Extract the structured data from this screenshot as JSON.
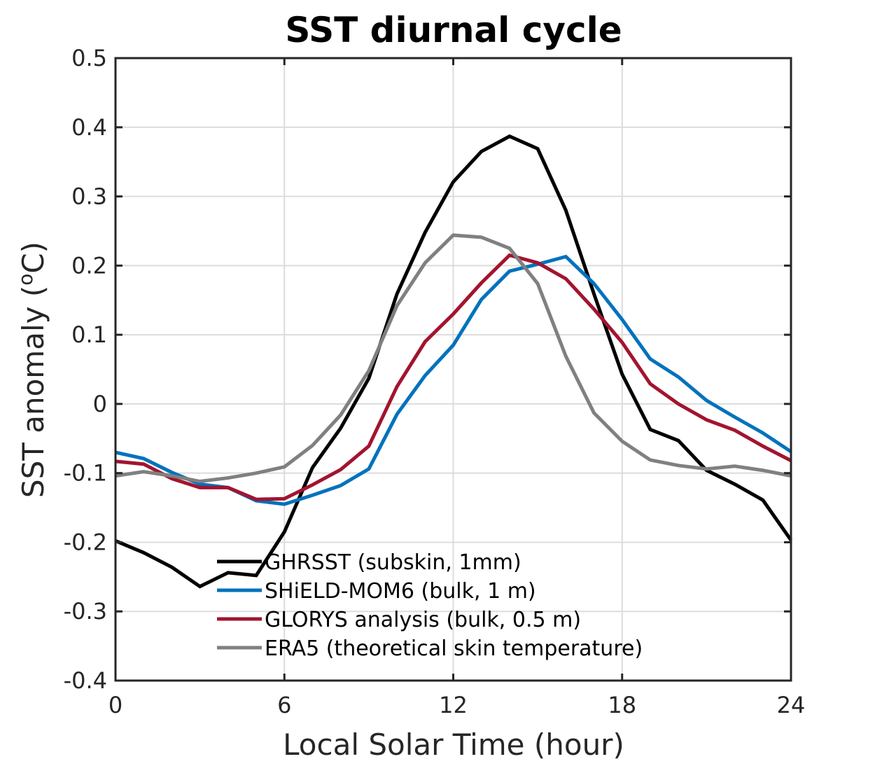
{
  "chart_data": {
    "type": "line",
    "title": "SST diurnal cycle",
    "xlabel": "Local Solar Time (hour)",
    "ylabel": "SST anomaly (",
    "ylabel_sup": "o",
    "ylabel_end": "C)",
    "xlim": [
      0,
      24
    ],
    "ylim": [
      -0.4,
      0.5
    ],
    "xticks": [
      0,
      6,
      12,
      18,
      24
    ],
    "xtick_labels": [
      "0",
      "6",
      "12",
      "18",
      "24"
    ],
    "yticks": [
      -0.4,
      -0.3,
      -0.2,
      -0.1,
      0,
      0.1,
      0.2,
      0.3,
      0.4,
      0.5
    ],
    "ytick_labels": [
      "-0.4",
      "-0.3",
      "-0.2",
      "-0.1",
      "0",
      "0.1",
      "0.2",
      "0.3",
      "0.4",
      "0.5"
    ],
    "grid": true,
    "legend_position": "bottom-center",
    "x": [
      0,
      1,
      2,
      3,
      4,
      5,
      6,
      7,
      8,
      9,
      10,
      11,
      12,
      13,
      14,
      15,
      16,
      17,
      18,
      19,
      20,
      21,
      22,
      23,
      24
    ],
    "series": [
      {
        "name": "GHRSST (subskin, 1mm)",
        "color": "#000000",
        "values": [
          -0.198,
          -0.215,
          -0.236,
          -0.264,
          -0.244,
          -0.248,
          -0.185,
          -0.092,
          -0.035,
          0.037,
          0.159,
          0.248,
          0.321,
          0.365,
          0.387,
          0.369,
          0.28,
          0.159,
          0.043,
          -0.037,
          -0.053,
          -0.096,
          -0.116,
          -0.139,
          -0.197
        ]
      },
      {
        "name": "SHiELD-MOM6 (bulk, 1 m)",
        "color": "#0072BD",
        "values": [
          -0.07,
          -0.079,
          -0.099,
          -0.116,
          -0.121,
          -0.14,
          -0.145,
          -0.132,
          -0.118,
          -0.094,
          -0.015,
          0.041,
          0.085,
          0.151,
          0.192,
          0.202,
          0.213,
          0.174,
          0.122,
          0.065,
          0.039,
          0.005,
          -0.019,
          -0.042,
          -0.069
        ]
      },
      {
        "name": "GLORYS analysis (bulk, 0.5 m)",
        "color": "#A2142F",
        "values": [
          -0.083,
          -0.087,
          -0.108,
          -0.121,
          -0.121,
          -0.138,
          -0.137,
          -0.117,
          -0.095,
          -0.061,
          0.025,
          0.09,
          0.13,
          0.175,
          0.215,
          0.204,
          0.181,
          0.137,
          0.089,
          0.029,
          0.0,
          -0.023,
          -0.038,
          -0.061,
          -0.082
        ]
      },
      {
        "name": "ERA5 (theoretical skin temperature)",
        "color": "#808080",
        "values": [
          -0.104,
          -0.098,
          -0.104,
          -0.112,
          -0.107,
          -0.1,
          -0.091,
          -0.06,
          -0.016,
          0.048,
          0.142,
          0.204,
          0.244,
          0.241,
          0.225,
          0.174,
          0.069,
          -0.013,
          -0.054,
          -0.081,
          -0.089,
          -0.094,
          -0.09,
          -0.096,
          -0.104
        ]
      }
    ]
  }
}
